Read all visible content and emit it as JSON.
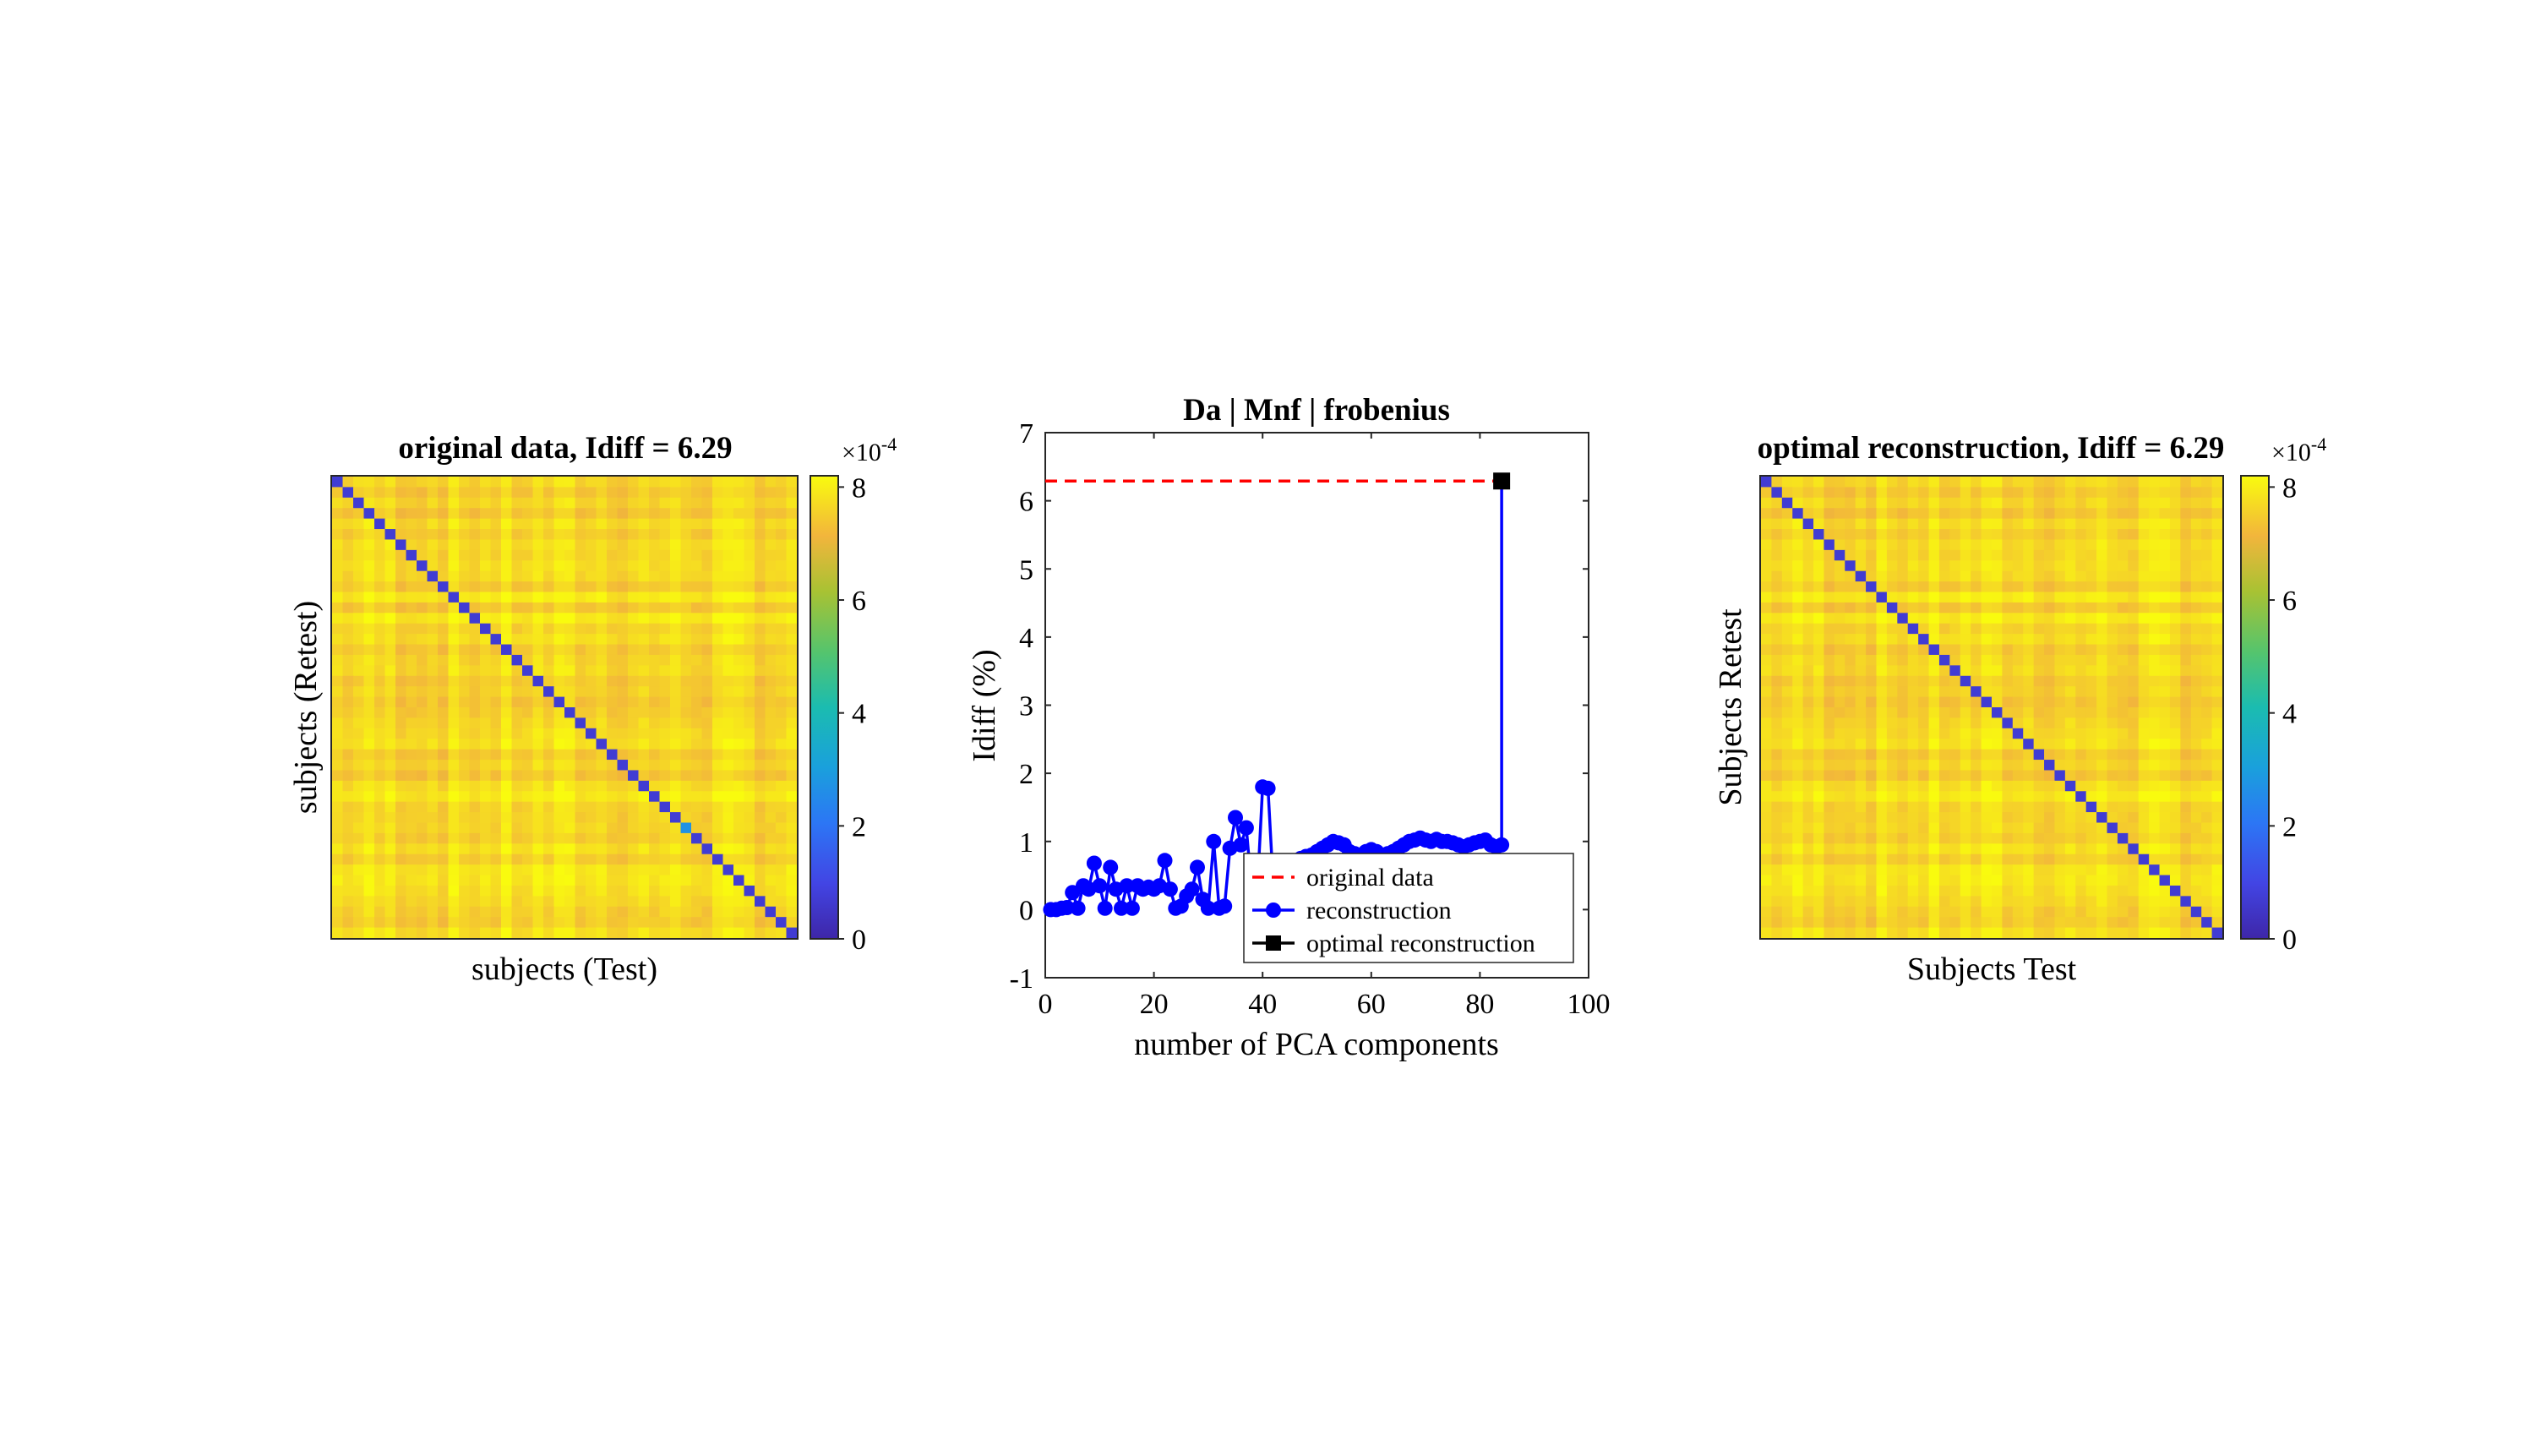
{
  "colors": {
    "diag": "#3d2dbf",
    "offdiag_base": "#f2d23a",
    "recon_line": "#0000ff",
    "orig_line": "#ff0000",
    "optimal_marker": "#000000",
    "axes": "#262626",
    "legend_border": "#262626"
  },
  "colorbar_ticks": [
    "0",
    "2",
    "4",
    "6",
    "8"
  ],
  "colorbar_exponent_base": "×10",
  "colorbar_exponent_power": "-4",
  "chart_data": [
    {
      "type": "heatmap",
      "title": "original data, Idiff = 6.29",
      "xlabel": "subjects (Test)",
      "ylabel": "subjects (Retest)",
      "n_subjects": 44,
      "clim": [
        0,
        0.00082
      ],
      "diagonal_value": 7e-05,
      "offdiagonal_typical": 0.00077,
      "highlighted_diagonal": {
        "index": 33,
        "value": 0.00027
      },
      "colorbar_ticks": [
        0,
        2,
        4,
        6,
        8
      ],
      "colorbar_scale": "×10^-4"
    },
    {
      "type": "line",
      "title": "Da | Mnf | frobenius",
      "xlabel": "number of PCA components",
      "ylabel": "Idiff (%)",
      "xlim": [
        0,
        100
      ],
      "ylim": [
        -1,
        7
      ],
      "xticks": [
        "0",
        "20",
        "40",
        "60",
        "80",
        "100"
      ],
      "yticks": [
        "-1",
        "0",
        "1",
        "2",
        "3",
        "4",
        "5",
        "6",
        "7"
      ],
      "grid": false,
      "legend_position": "bottom-right",
      "series": [
        {
          "name": "original data",
          "style": "dashed",
          "x": [
            0,
            84
          ],
          "y": [
            6.29,
            6.29
          ]
        },
        {
          "name": "reconstruction",
          "style": "solid-circle",
          "x": [
            1,
            2,
            3,
            4,
            5,
            6,
            7,
            8,
            9,
            10,
            11,
            12,
            13,
            14,
            15,
            16,
            17,
            18,
            19,
            20,
            21,
            22,
            23,
            24,
            25,
            26,
            27,
            28,
            29,
            30,
            31,
            32,
            33,
            34,
            35,
            36,
            37,
            38,
            39,
            40,
            41,
            42,
            43,
            44,
            45,
            46,
            47,
            48,
            49,
            50,
            51,
            52,
            53,
            54,
            55,
            56,
            57,
            58,
            59,
            60,
            61,
            62,
            63,
            64,
            65,
            66,
            67,
            68,
            69,
            70,
            71,
            72,
            73,
            74,
            75,
            76,
            77,
            78,
            79,
            80,
            81,
            82,
            83,
            84
          ],
          "y": [
            0,
            0,
            0.02,
            0.03,
            0.25,
            0.02,
            0.35,
            0.3,
            0.68,
            0.35,
            0.02,
            0.62,
            0.3,
            0.02,
            0.35,
            0.02,
            0.35,
            0.3,
            0.33,
            0.3,
            0.35,
            0.72,
            0.3,
            0.02,
            0.05,
            0.2,
            0.3,
            0.62,
            0.15,
            0.02,
            1.0,
            0.02,
            0.05,
            0.9,
            1.35,
            0.95,
            1.2,
            0.3,
            0.25,
            1.8,
            1.78,
            0.3,
            0.25,
            0.4,
            0.5,
            0.6,
            0.75,
            0.78,
            0.8,
            0.85,
            0.9,
            0.95,
            1.0,
            0.98,
            0.95,
            0.85,
            0.82,
            0.8,
            0.85,
            0.88,
            0.85,
            0.8,
            0.82,
            0.85,
            0.9,
            0.95,
            1.0,
            1.02,
            1.05,
            1.02,
            1.0,
            1.03,
            1.0,
            1.0,
            0.98,
            0.95,
            0.92,
            0.95,
            0.98,
            1.0,
            1.02,
            0.95,
            0.92,
            0.95
          ]
        },
        {
          "name": "optimal reconstruction",
          "style": "solid-square",
          "x": [
            84
          ],
          "y": [
            6.29
          ]
        }
      ]
    },
    {
      "type": "heatmap",
      "title": "optimal reconstruction, Idiff = 6.29",
      "xlabel": "Subjects Test",
      "ylabel": "Subjects Retest",
      "n_subjects": 44,
      "clim": [
        0,
        0.00082
      ],
      "diagonal_value": 7e-05,
      "offdiagonal_typical": 0.00077,
      "colorbar_ticks": [
        0,
        2,
        4,
        6,
        8
      ],
      "colorbar_scale": "×10^-4"
    }
  ]
}
